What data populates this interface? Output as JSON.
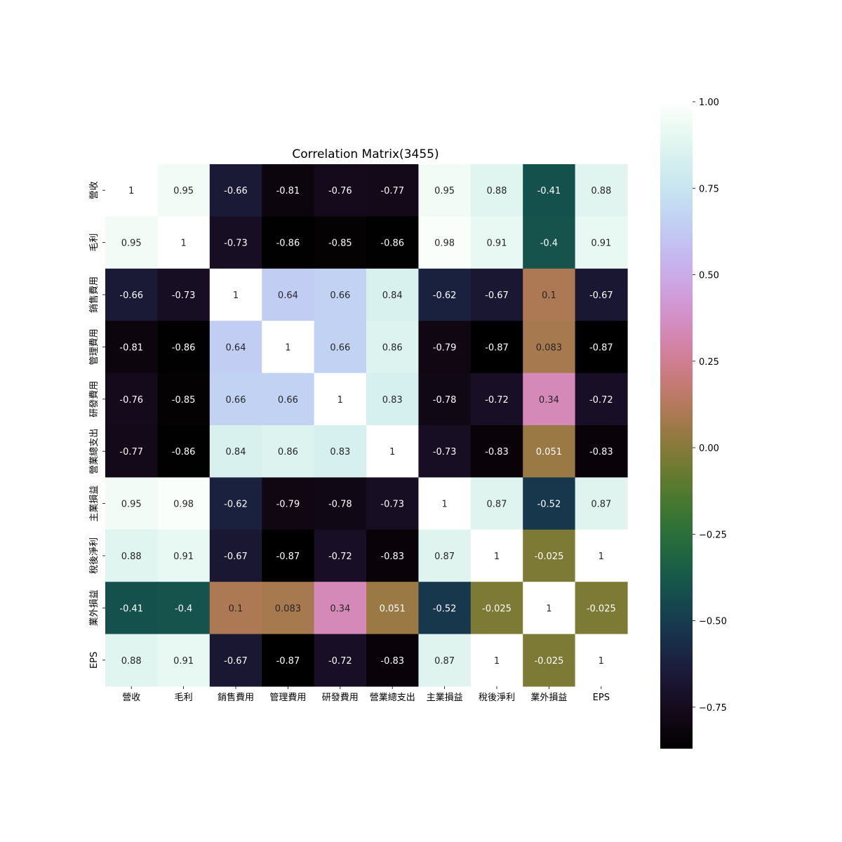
{
  "chart_data": {
    "type": "heatmap",
    "title": "Correlation Matrix(3455)",
    "xlabel": "",
    "ylabel": "",
    "labels": [
      "營收",
      "毛利",
      "銷售費用",
      "管理費用",
      "研發費用",
      "營業總支出",
      "主業損益",
      "稅後淨利",
      "業外損益",
      "EPS"
    ],
    "values": [
      [
        1,
        0.95,
        -0.66,
        -0.81,
        -0.76,
        -0.77,
        0.95,
        0.88,
        -0.41,
        0.88
      ],
      [
        0.95,
        1,
        -0.73,
        -0.86,
        -0.85,
        -0.86,
        0.98,
        0.91,
        -0.4,
        0.91
      ],
      [
        -0.66,
        -0.73,
        1,
        0.64,
        0.66,
        0.84,
        -0.62,
        -0.67,
        0.1,
        -0.67
      ],
      [
        -0.81,
        -0.86,
        0.64,
        1,
        0.66,
        0.86,
        -0.79,
        -0.87,
        0.083,
        -0.87
      ],
      [
        -0.76,
        -0.85,
        0.66,
        0.66,
        1,
        0.83,
        -0.78,
        -0.72,
        0.34,
        -0.72
      ],
      [
        -0.77,
        -0.86,
        0.84,
        0.86,
        0.83,
        1,
        -0.73,
        -0.83,
        0.051,
        -0.83
      ],
      [
        0.95,
        0.98,
        -0.62,
        -0.79,
        -0.78,
        -0.73,
        1,
        0.87,
        -0.52,
        0.87
      ],
      [
        0.88,
        0.91,
        -0.67,
        -0.87,
        -0.72,
        -0.83,
        0.87,
        1,
        -0.025,
        1
      ],
      [
        -0.41,
        -0.4,
        0.1,
        0.083,
        0.34,
        0.051,
        -0.52,
        -0.025,
        1,
        -0.025
      ],
      [
        0.88,
        0.91,
        -0.67,
        -0.87,
        -0.72,
        -0.83,
        0.87,
        1,
        -0.025,
        1
      ]
    ],
    "colorbar": {
      "range": [
        -0.87,
        1.0
      ],
      "ticks": [
        1.0,
        0.75,
        0.5,
        0.25,
        0.0,
        -0.25,
        -0.5,
        -0.75
      ],
      "tick_labels": [
        "1.00",
        "0.75",
        "0.50",
        "0.25",
        "0.00",
        "−0.25",
        "−0.50",
        "−0.75"
      ],
      "colormap": "cubehelix"
    },
    "grid": false,
    "annotated": true
  }
}
